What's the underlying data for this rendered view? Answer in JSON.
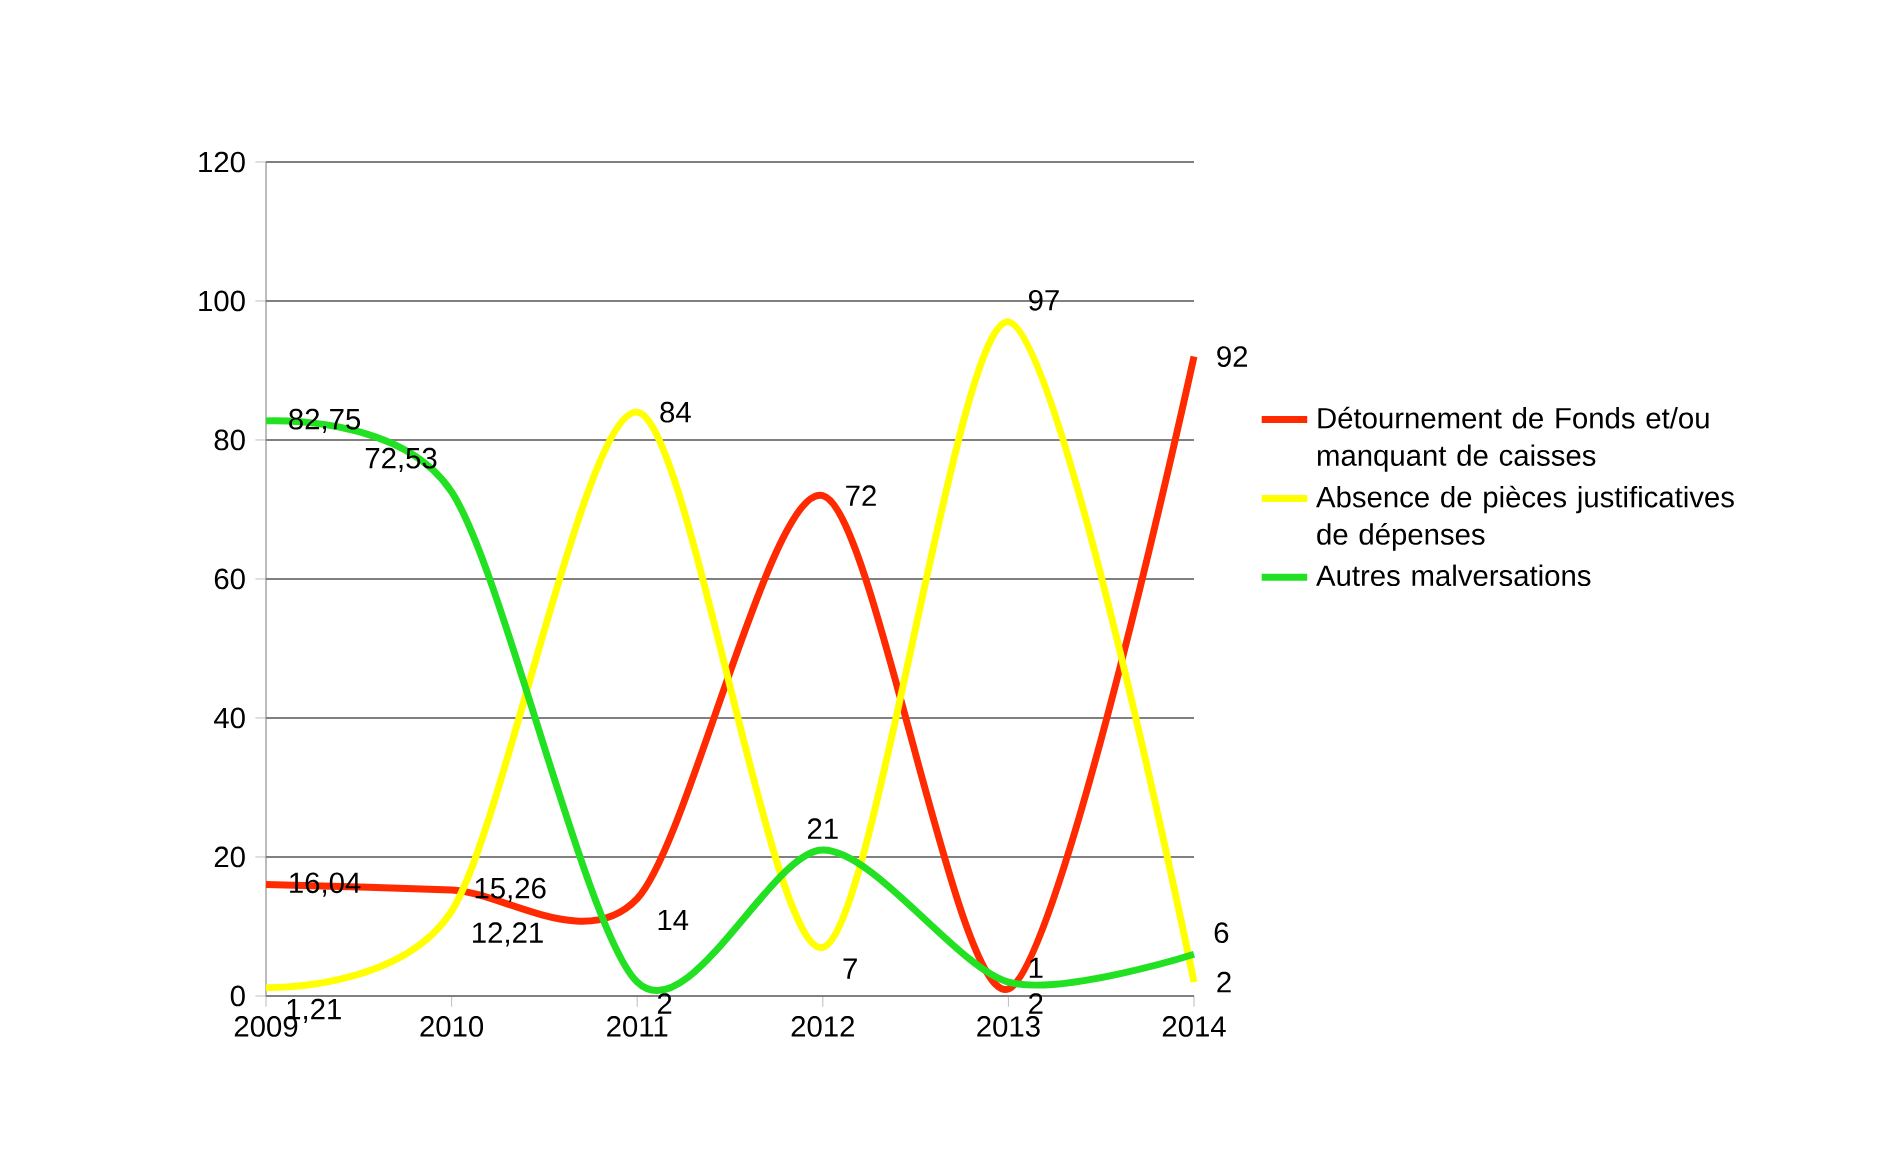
{
  "chart_data": {
    "type": "line",
    "x": [
      2009,
      2010,
      2011,
      2012,
      2013,
      2014
    ],
    "xlim": [
      2009,
      2014
    ],
    "xticks": [
      2009,
      2010,
      2011,
      2012,
      2013,
      2014
    ],
    "ylim": [
      0,
      120
    ],
    "yticks": [
      0,
      20,
      40,
      60,
      80,
      100,
      120
    ],
    "grid": "y",
    "legend": "right",
    "marker": "none",
    "line_style": "solid",
    "series": [
      {
        "name": "Détournement de Fonds et/ou manquant de caisses",
        "color": "#ff2a00",
        "values": [
          16.04,
          15.26,
          14,
          72,
          1,
          92
        ],
        "value_labels": [
          "16,04",
          "15,26",
          "14",
          "72",
          "1",
          "92"
        ]
      },
      {
        "name": "Absence de pièces justificatives de dépenses",
        "color": "#ffff00",
        "values": [
          1.21,
          12.21,
          84,
          7,
          97,
          2
        ],
        "value_labels": [
          "1,21",
          "12,21",
          "84",
          "7",
          "97",
          "2"
        ]
      },
      {
        "name": "Autres malversations",
        "color": "#22e022",
        "values": [
          82.75,
          72.53,
          2,
          21,
          2,
          6
        ],
        "value_labels": [
          "82,75",
          "72,53",
          "2",
          "21",
          "2",
          "6"
        ]
      }
    ]
  }
}
